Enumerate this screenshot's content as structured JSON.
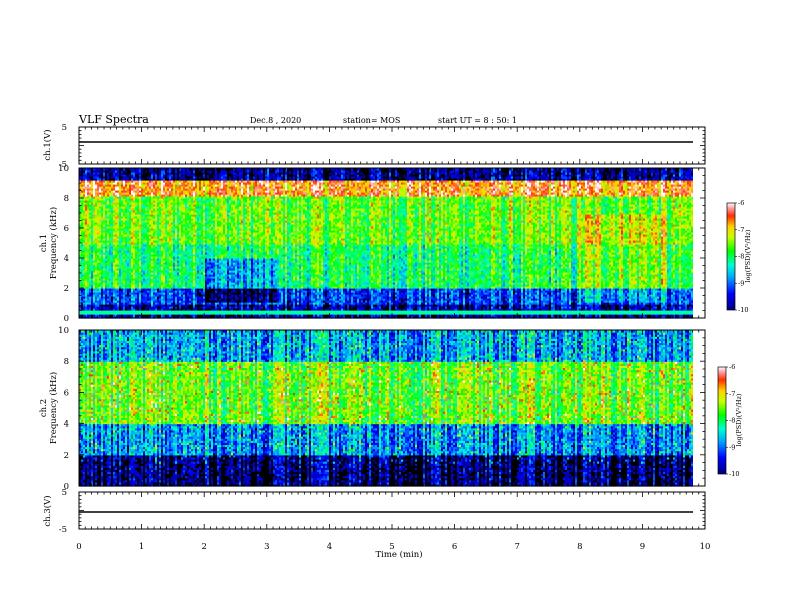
{
  "header": {
    "title": "VLF Spectra",
    "date": "Dec.8 , 2020",
    "station": "station= MOS",
    "start": "start UT =  8 : 50: 1"
  },
  "chart_data": [
    {
      "type": "line",
      "ylabel": "ch.1(V)",
      "ylim": [
        -5,
        5
      ],
      "yticks": [
        5,
        -5
      ],
      "x": [
        0,
        10
      ],
      "values": [
        0,
        0
      ]
    },
    {
      "type": "heatmap",
      "ylabel_top": "ch.1",
      "ylabel": "Frequency (kHz)",
      "ylim": [
        0,
        10
      ],
      "yticks": [
        0,
        2,
        4,
        6,
        8,
        10
      ],
      "colorbar": {
        "label": "log(PSD)(V²/Hz)",
        "ticks": [
          -6,
          -7,
          -8,
          -9,
          -10
        ],
        "range": [
          -10,
          -6
        ]
      },
      "bands": [
        {
          "f": [
            0,
            1
          ],
          "level": -9.7
        },
        {
          "f": [
            1,
            2
          ],
          "level": -9.2
        },
        {
          "f": [
            2,
            5
          ],
          "level": -8.0
        },
        {
          "f": [
            5,
            8.2
          ],
          "level": -7.6
        },
        {
          "f": [
            8.2,
            9.2
          ],
          "level": -6.6
        },
        {
          "f": [
            9.2,
            10
          ],
          "level": -9.8
        }
      ]
    },
    {
      "type": "heatmap",
      "ylabel_top": "ch.2",
      "ylabel": "Frequency (kHz)",
      "ylim": [
        0,
        10
      ],
      "yticks": [
        0,
        2,
        4,
        6,
        8,
        10
      ],
      "colorbar": {
        "label": "log(PSD)(V²/Hz)",
        "ticks": [
          -6,
          -7,
          -8,
          -9,
          -10
        ],
        "range": [
          -10,
          -6
        ]
      },
      "bands": [
        {
          "f": [
            0,
            2
          ],
          "level": -9.9
        },
        {
          "f": [
            2,
            4
          ],
          "level": -8.9
        },
        {
          "f": [
            4,
            8
          ],
          "level": -7.6
        },
        {
          "f": [
            8,
            10
          ],
          "level": -8.8
        }
      ]
    },
    {
      "type": "line",
      "ylabel": "ch.3(V)",
      "ylim": [
        -5,
        5
      ],
      "yticks": [
        5,
        -5
      ],
      "x": [
        0,
        10
      ],
      "values": [
        -1,
        -1
      ]
    }
  ],
  "xaxis": {
    "label": "Time (min)",
    "range": [
      0,
      10
    ],
    "ticks": [
      0,
      1,
      2,
      3,
      4,
      5,
      6,
      7,
      8,
      9,
      10
    ]
  }
}
